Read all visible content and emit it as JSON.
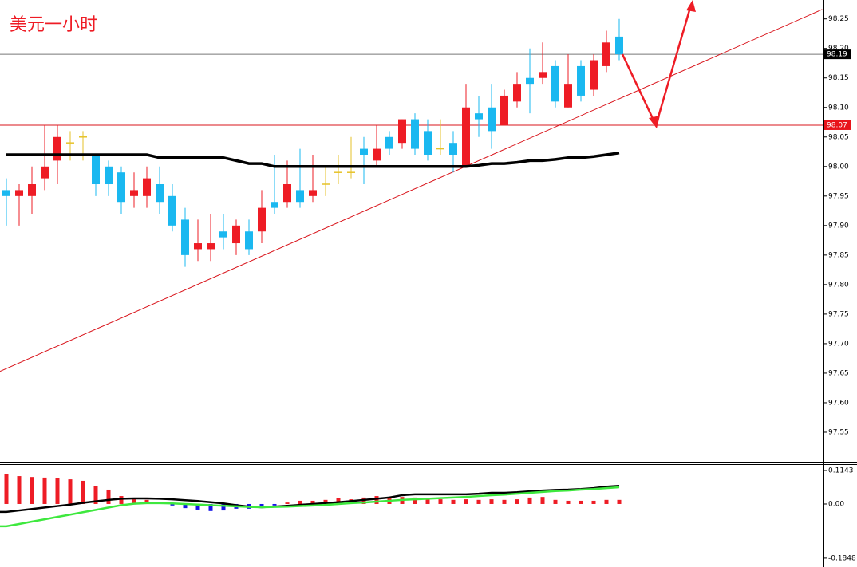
{
  "chart_data": [
    {
      "type": "candlestick",
      "title": "美元一小时",
      "open": [
        97.96,
        97.95,
        97.95,
        97.98,
        98.01,
        98.04,
        98.05,
        98.02,
        98.0,
        97.99,
        97.95,
        97.95,
        97.97,
        97.95,
        97.91,
        97.86,
        97.86,
        97.89,
        97.87,
        97.89,
        97.89,
        97.94,
        97.94,
        97.96,
        97.95,
        97.97,
        97.99,
        97.99,
        98.03,
        98.01,
        98.05,
        98.04,
        98.08,
        98.06,
        98.03,
        98.04,
        98.0,
        98.09,
        98.1,
        98.07,
        98.11,
        98.15,
        98.15,
        98.17,
        98.1,
        98.17,
        98.13,
        98.17,
        98.22
      ],
      "high": [
        97.98,
        97.97,
        98.0,
        98.07,
        98.07,
        98.06,
        98.06,
        98.02,
        98.01,
        98.0,
        97.99,
        98.0,
        98.0,
        97.97,
        97.93,
        97.91,
        97.92,
        97.92,
        97.91,
        97.91,
        97.96,
        98.02,
        98.01,
        98.03,
        98.02,
        98.0,
        98.02,
        98.05,
        98.05,
        98.07,
        98.06,
        98.08,
        98.09,
        98.08,
        98.08,
        98.06,
        98.14,
        98.12,
        98.14,
        98.13,
        98.16,
        98.2,
        98.21,
        98.18,
        98.19,
        98.18,
        98.19,
        98.23,
        98.25
      ],
      "low": [
        97.9,
        97.9,
        97.92,
        97.96,
        97.97,
        98.01,
        98.01,
        97.95,
        97.95,
        97.92,
        97.93,
        97.93,
        97.92,
        97.89,
        97.83,
        97.84,
        97.84,
        97.86,
        97.85,
        97.85,
        97.87,
        97.92,
        97.93,
        97.93,
        97.94,
        97.95,
        97.97,
        97.98,
        97.97,
        98.0,
        98.02,
        98.03,
        98.02,
        98.01,
        98.02,
        97.99,
        98.0,
        98.05,
        98.03,
        98.07,
        98.1,
        98.09,
        98.14,
        98.1,
        98.1,
        98.11,
        98.12,
        98.16,
        98.18
      ],
      "close": [
        97.95,
        97.96,
        97.97,
        98.0,
        98.05,
        98.04,
        98.05,
        97.97,
        97.97,
        97.94,
        97.96,
        97.98,
        97.94,
        97.9,
        97.85,
        97.87,
        97.87,
        97.88,
        97.9,
        97.86,
        97.93,
        97.93,
        97.97,
        97.94,
        97.96,
        97.97,
        97.99,
        97.99,
        98.02,
        98.03,
        98.03,
        98.08,
        98.03,
        98.02,
        98.03,
        98.02,
        98.1,
        98.08,
        98.06,
        98.12,
        98.14,
        98.14,
        98.16,
        98.11,
        98.14,
        98.12,
        98.18,
        98.21,
        98.19
      ],
      "up_color": "#ee1c25",
      "down_color": "#1ab8f0",
      "doji_color": "#e6c229",
      "ma": {
        "color": "#000000",
        "values": [
          98.02,
          98.02,
          98.02,
          98.02,
          98.02,
          98.02,
          98.02,
          98.02,
          98.02,
          98.02,
          98.02,
          98.02,
          98.015,
          98.015,
          98.015,
          98.015,
          98.015,
          98.015,
          98.01,
          98.005,
          98.005,
          98.0,
          98.0,
          98.0,
          98.0,
          98.0,
          98.0,
          98.0,
          98.0,
          98.0,
          98.0,
          98.0,
          98.0,
          98.0,
          98.0,
          98.0,
          98.0,
          98.002,
          98.005,
          98.005,
          98.007,
          98.01,
          98.01,
          98.012,
          98.015,
          98.015,
          98.017,
          98.02,
          98.023
        ]
      },
      "trendline": {
        "color": "#d9141b",
        "x": [
          -0.5,
          63.9
        ],
        "y": [
          97.653,
          98.266
        ]
      },
      "hlines": [
        {
          "value": 98.19,
          "color": "#777777",
          "label_bg": "#000000"
        },
        {
          "value": 98.07,
          "color": "#d9141b",
          "label_bg": "#e8141b"
        }
      ],
      "ylim": [
        97.5,
        98.282
      ],
      "yticks": [
        97.55,
        {
          "value": 97.6,
          "label": "97.60"
        },
        97.65,
        {
          "value": 97.7,
          "label": "97.70"
        },
        97.75,
        {
          "value": 97.8,
          "label": "97.80"
        },
        97.85,
        {
          "value": 97.9,
          "label": "97.90"
        },
        97.95,
        {
          "value": 98,
          "label": "98.00"
        },
        98.05,
        {
          "value": 98.1,
          "label": "98.10"
        },
        98.15,
        {
          "value": 98.2,
          "label": "98.20"
        },
        98.25
      ]
    },
    {
      "type": "bar",
      "values": [
        0.103,
        0.095,
        0.092,
        0.09,
        0.087,
        0.084,
        0.079,
        0.062,
        0.049,
        0.027,
        0.016,
        0.014,
        0.005,
        -0.005,
        -0.014,
        -0.019,
        -0.024,
        -0.022,
        -0.016,
        -0.016,
        -0.011,
        -0.005,
        0.005,
        0.011,
        0.011,
        0.014,
        0.019,
        0.016,
        0.022,
        0.027,
        0.024,
        0.024,
        0.022,
        0.019,
        0.016,
        0.014,
        0.016,
        0.014,
        0.016,
        0.014,
        0.016,
        0.022,
        0.024,
        0.014,
        0.011,
        0.011,
        0.011,
        0.014,
        0.014
      ],
      "pos_color": "#ee1c25",
      "neg_color": "#1414e6",
      "series": [
        {
          "color": "#000000",
          "values": [
            -0.027,
            -0.022,
            -0.017,
            -0.012,
            -0.007,
            -0.002,
            0.004,
            0.009,
            0.014,
            0.018,
            0.019,
            0.019,
            0.018,
            0.016,
            0.013,
            0.01,
            0.006,
            0.002,
            -0.004,
            -0.009,
            -0.011,
            -0.009,
            -0.006,
            -0.003,
            0.0,
            0.003,
            0.006,
            0.01,
            0.014,
            0.018,
            0.022,
            0.03,
            0.033,
            0.033,
            0.033,
            0.033,
            0.033,
            0.035,
            0.038,
            0.038,
            0.04,
            0.043,
            0.046,
            0.048,
            0.049,
            0.051,
            0.054,
            0.059,
            0.062
          ]
        },
        {
          "color": "#3ee83e",
          "values": [
            -0.076,
            -0.068,
            -0.06,
            -0.052,
            -0.044,
            -0.036,
            -0.028,
            -0.02,
            -0.012,
            -0.004,
            0.001,
            0.003,
            0.003,
            0.002,
            0.0,
            -0.002,
            -0.004,
            -0.006,
            -0.008,
            -0.01,
            -0.011,
            -0.01,
            -0.009,
            -0.007,
            -0.005,
            -0.003,
            0.0,
            0.003,
            0.005,
            0.008,
            0.011,
            0.014,
            0.016,
            0.018,
            0.02,
            0.022,
            0.024,
            0.027,
            0.03,
            0.032,
            0.035,
            0.038,
            0.041,
            0.044,
            0.046,
            0.049,
            0.051,
            0.054,
            0.057
          ]
        }
      ],
      "ylim": [
        -0.215,
        0.136
      ],
      "yticks": [
        0.1143,
        {
          "value": 0,
          "label": "0.00"
        },
        -0.1848
      ]
    }
  ]
}
